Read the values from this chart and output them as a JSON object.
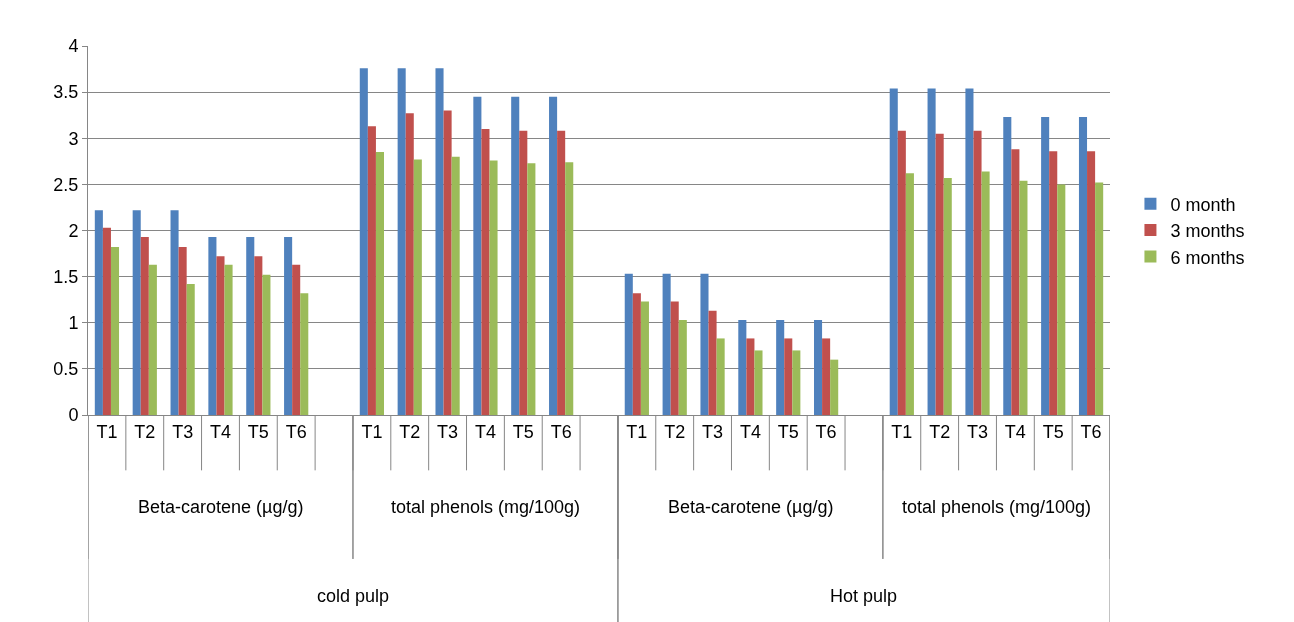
{
  "chart_data": {
    "type": "bar",
    "categories": [
      "T1",
      "T2",
      "T3",
      "T4",
      "T5",
      "T6",
      null,
      "T1",
      "T2",
      "T3",
      "T4",
      "T5",
      "T6",
      null,
      "T1",
      "T2",
      "T3",
      "T4",
      "T5",
      "T6",
      null,
      "T1",
      "T2",
      "T3",
      "T4",
      "T5",
      "T6"
    ],
    "series": [
      {
        "name": "0 month",
        "color": "#4f81bd",
        "values": [
          2.22,
          2.22,
          2.22,
          1.93,
          1.93,
          1.93,
          null,
          3.76,
          3.76,
          3.76,
          3.45,
          3.45,
          3.45,
          null,
          1.53,
          1.53,
          1.53,
          1.03,
          1.03,
          1.03,
          null,
          3.54,
          3.54,
          3.54,
          3.23,
          3.23,
          3.23
        ]
      },
      {
        "name": "3 months",
        "color": "#c0504d",
        "values": [
          2.03,
          1.93,
          1.82,
          1.72,
          1.72,
          1.63,
          null,
          3.13,
          3.27,
          3.3,
          3.1,
          3.08,
          3.08,
          null,
          1.32,
          1.23,
          1.13,
          0.83,
          0.83,
          0.83,
          null,
          3.08,
          3.05,
          3.08,
          2.88,
          2.86,
          2.86
        ]
      },
      {
        "name": "6 months",
        "color": "#9bbb59",
        "values": [
          1.82,
          1.63,
          1.42,
          1.63,
          1.52,
          1.32,
          null,
          2.85,
          2.77,
          2.8,
          2.76,
          2.73,
          2.74,
          null,
          1.23,
          1.03,
          0.83,
          0.7,
          0.7,
          0.6,
          null,
          2.62,
          2.57,
          2.64,
          2.54,
          2.5,
          2.52
        ]
      }
    ],
    "annotations": [
      "Beta-carotene (µg/g)",
      "total phenols (mg/100g)",
      "Beta-carotene (µg/g)",
      "total phenols (mg/100g)",
      "cold pulp",
      "Hot pulp"
    ],
    "ylim": [
      0,
      4
    ],
    "yticks": [
      0,
      0.5,
      1,
      1.5,
      2,
      2.5,
      3,
      3.5,
      4
    ],
    "grid": "y",
    "legend": "right"
  }
}
